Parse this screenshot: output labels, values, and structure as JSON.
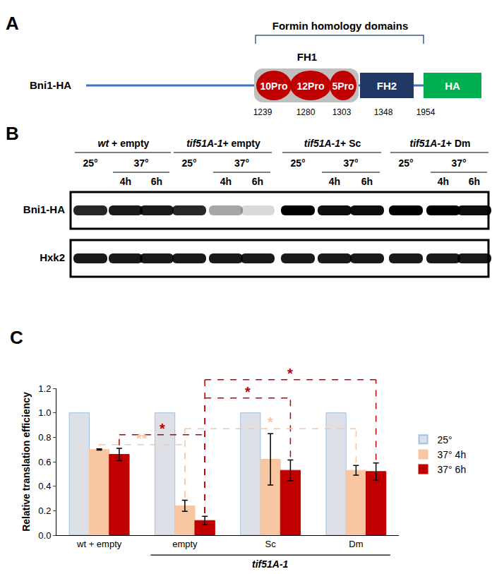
{
  "panels": {
    "A": {
      "label": "A",
      "title": "Formin homology domains",
      "protein": "Bni1-HA",
      "region_label": "FH1",
      "domains": [
        {
          "text": "10Pro",
          "type": "proline"
        },
        {
          "text": "12Pro",
          "type": "proline"
        },
        {
          "text": "5Pro",
          "type": "proline"
        },
        {
          "text": "FH2",
          "type": "FH2"
        },
        {
          "text": "HA",
          "type": "tag"
        }
      ],
      "positions": [
        1239,
        1280,
        1303,
        1348,
        1954
      ]
    },
    "B": {
      "label": "B",
      "groups": [
        "wt + empty",
        "tif51A-1+ empty",
        "tif51A-1+ Sc",
        "tif51A-1+ Dm"
      ],
      "temperatures": [
        "25°",
        "37°"
      ],
      "times": [
        "4h",
        "6h"
      ],
      "blots": [
        {
          "name": "Bni1-HA",
          "intensity": [
            0.85,
            0.9,
            0.9,
            0.85,
            0.35,
            0.15,
            1,
            0.95,
            0.95,
            1,
            1,
            0.95
          ]
        },
        {
          "name": "Hxk2",
          "intensity": [
            0.9,
            0.9,
            0.9,
            0.9,
            0.9,
            0.9,
            0.9,
            0.9,
            0.9,
            0.9,
            0.9,
            0.9
          ]
        }
      ]
    }
  },
  "chart_data": {
    "type": "bar",
    "title": "C",
    "y_label": "Relative translation efficiency",
    "categories": [
      "wt + empty",
      "empty",
      "Sc",
      "Dm"
    ],
    "ylim": [
      0,
      1.2
    ],
    "yticks": [
      {
        "value": 0,
        "label": "0.0"
      },
      0.2,
      0.4,
      0.6,
      0.8,
      {
        "value": 1,
        "label": "1.0"
      },
      1.2
    ],
    "legend": "right",
    "grid": false,
    "series": [
      {
        "name": "25°",
        "color": "#dde1e7",
        "values": [
          1,
          1,
          1,
          1
        ]
      },
      {
        "name": "37° 4h",
        "color": "#f8c6a2",
        "values": [
          0.7,
          0.24,
          0.62,
          0.53
        ],
        "error": [
          0.005,
          0.045,
          0.21,
          0.04
        ]
      },
      {
        "name": "37° 6h",
        "color": "#c00000",
        "values": [
          0.66,
          0.12,
          0.53,
          0.52
        ],
        "error": [
          0.05,
          0.035,
          0.085,
          0.07
        ]
      }
    ],
    "annotations": [
      {
        "text": "tif51A-1",
        "categories": [
          "empty",
          "Sc",
          "Dm"
        ]
      },
      {
        "text": "*",
        "series": "37° 6h",
        "from": "wt + empty",
        "to": "empty"
      },
      {
        "text": "**",
        "series": "37° 4h",
        "from": "wt + empty",
        "to": "empty"
      },
      {
        "text": "*",
        "series": "37° 6h",
        "from": "empty",
        "to": "Sc"
      },
      {
        "text": "*",
        "series": "37° 6h",
        "from": "empty",
        "to": "Dm"
      },
      {
        "text": "*",
        "series": "37° 4h",
        "from": "empty",
        "to": "Dm"
      }
    ]
  }
}
